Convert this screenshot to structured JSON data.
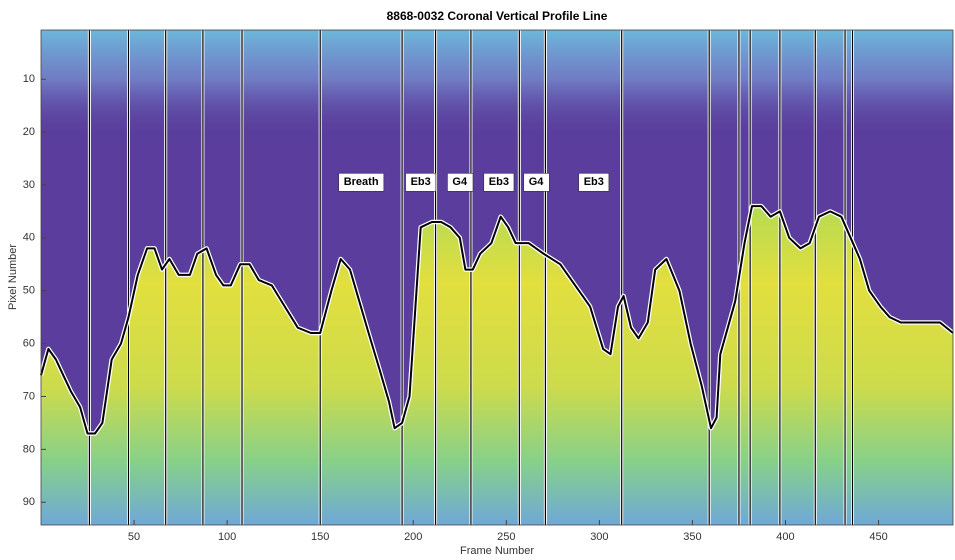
{
  "chart_data": {
    "type": "line",
    "title": "8868-0032 Coronal Vertical Profile Line",
    "xlabel": "Frame Number",
    "ylabel": "Pixel Number",
    "xlim": [
      0,
      490
    ],
    "ylim": [
      0.7,
      94.3
    ],
    "y_reversed": true,
    "xticks": [
      50,
      100,
      150,
      200,
      250,
      300,
      350,
      400,
      450
    ],
    "yticks": [
      10,
      20,
      30,
      40,
      50,
      60,
      70,
      80,
      90
    ],
    "x": [
      0,
      4,
      8,
      12,
      16,
      21,
      25,
      29,
      33,
      38,
      43,
      47,
      52,
      57,
      61,
      65,
      69,
      74,
      80,
      84,
      89,
      94,
      98,
      102,
      107,
      112,
      117,
      124,
      131,
      138,
      145,
      150,
      156,
      161,
      166,
      171,
      176,
      182,
      187,
      190,
      194,
      198,
      204,
      210,
      215,
      220,
      225,
      228,
      232,
      236,
      242,
      247,
      251,
      255,
      262,
      270,
      279,
      287,
      295,
      302,
      306,
      310,
      313,
      317,
      321,
      326,
      330,
      336,
      343,
      349,
      355,
      360,
      363,
      365,
      369,
      373,
      378,
      382,
      387,
      392,
      397,
      402,
      408,
      413,
      418,
      424,
      430,
      435,
      440,
      445,
      451,
      456,
      462,
      470,
      477,
      483,
      490
    ],
    "series": [
      {
        "color": "#000000",
        "values": [
          66,
          61,
          63,
          66,
          69,
          72,
          77,
          77,
          75,
          63,
          60,
          55,
          47,
          42,
          42,
          46,
          44,
          47,
          47,
          43,
          42,
          47,
          49,
          49,
          45,
          45,
          48,
          49,
          53,
          57,
          58,
          58,
          50,
          44,
          46,
          52,
          58,
          65,
          71,
          76,
          75,
          70,
          38,
          37,
          37,
          38,
          40,
          46,
          46,
          43,
          41,
          36,
          38,
          41,
          41,
          43,
          45,
          49,
          53,
          61,
          62,
          53,
          51,
          57,
          59,
          56,
          46,
          44,
          50,
          60,
          68,
          76,
          74,
          62,
          57,
          52,
          41,
          34,
          34,
          36,
          35,
          40,
          42,
          41,
          36,
          35,
          36,
          40,
          44,
          50,
          53,
          55,
          56,
          56,
          56,
          56,
          58
        ]
      }
    ],
    "event_frames": [
      26,
      47,
      67,
      87,
      108,
      150,
      194,
      212,
      231,
      257,
      271,
      312,
      359,
      375,
      381,
      397,
      416,
      432,
      436
    ],
    "annotations": [
      {
        "text": "Breath",
        "x": 172,
        "y": 29.5
      },
      {
        "text": "Eb3",
        "x": 204,
        "y": 29.5
      },
      {
        "text": "G4",
        "x": 225,
        "y": 29.5
      },
      {
        "text": "Eb3",
        "x": 246,
        "y": 29.5
      },
      {
        "text": "G4",
        "x": 266,
        "y": 29.5
      },
      {
        "text": "Eb3",
        "x": 297,
        "y": 29.5
      }
    ]
  }
}
